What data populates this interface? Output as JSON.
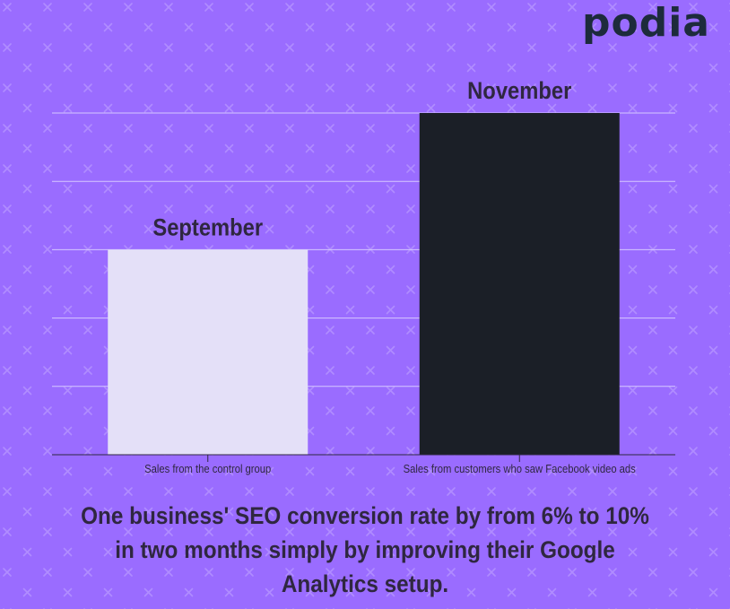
{
  "brand": {
    "logo_text": "podia"
  },
  "colors": {
    "background": "#9a6cff",
    "pattern": "#b08cff",
    "grid": "#d6c8ff",
    "text_dark": "#2f2740",
    "logo": "#1d2b3c"
  },
  "chart_data": {
    "type": "bar",
    "categories": [
      "Sales from the control group",
      "Sales from customers who saw Facebook video ads"
    ],
    "values": [
      6,
      10
    ],
    "bar_labels": [
      "September",
      "November"
    ],
    "bar_colors": [
      "#e4e0f8",
      "#1b1f27"
    ],
    "ylim": [
      0,
      10
    ],
    "grid": true,
    "title": "",
    "xlabel": "",
    "ylabel": ""
  },
  "caption": "One business' SEO conversion rate by from 6% to 10% in two months simply by improving their Google Analytics setup."
}
